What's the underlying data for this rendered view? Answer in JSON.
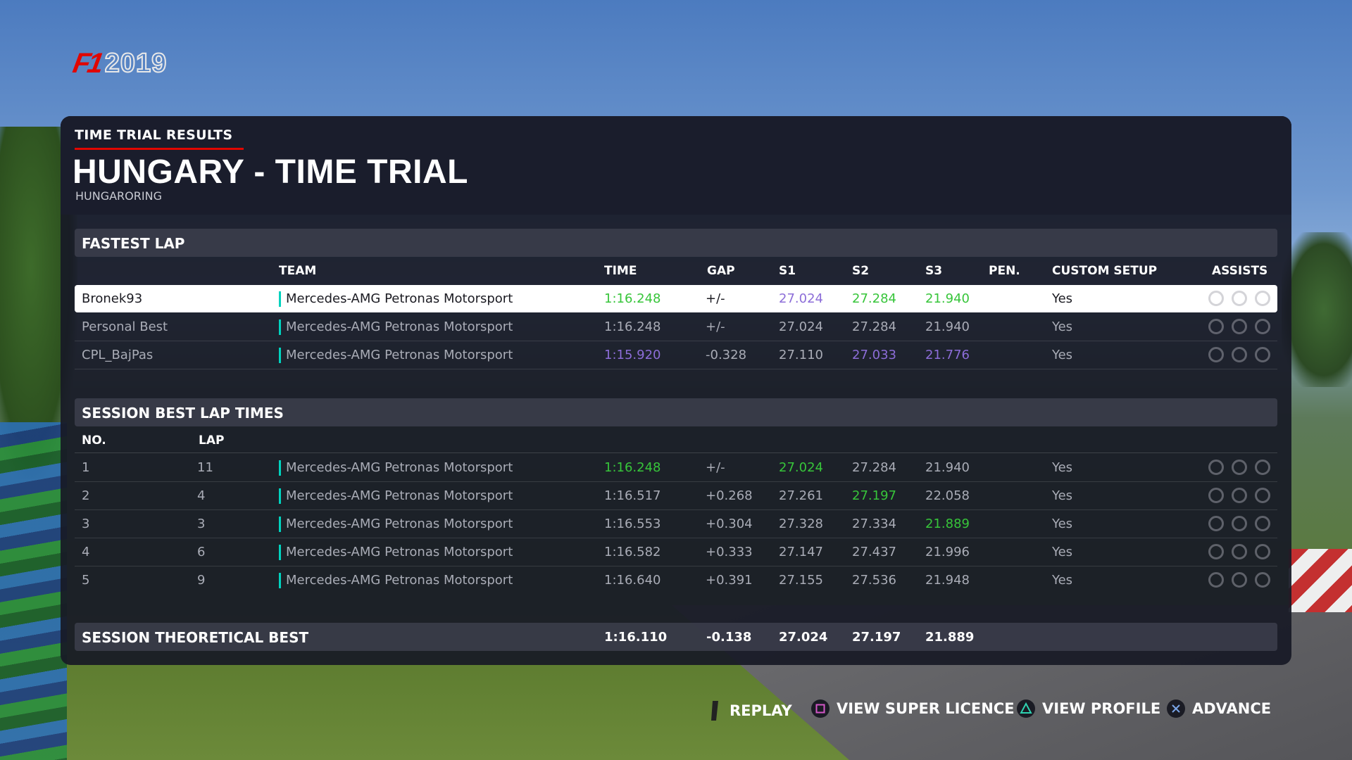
{
  "brand": {
    "logo_main": "F1",
    "logo_year": "2019"
  },
  "header": {
    "kicker": "TIME TRIAL RESULTS",
    "title": "HUNGARY - TIME TRIAL",
    "subtitle": "HUNGARORING"
  },
  "fastest_lap": {
    "section_title": "FASTEST LAP",
    "columns": {
      "team": "TEAM",
      "time": "TIME",
      "gap": "GAP",
      "s1": "S1",
      "s2": "S2",
      "s3": "S3",
      "pen": "PEN.",
      "custom_setup": "CUSTOM SETUP",
      "assists": "ASSISTS"
    },
    "rows": [
      {
        "name": "Bronek93",
        "team": "Mercedes-AMG Petronas Motorsport",
        "time": "1:16.248",
        "gap": "+/-",
        "s1": "27.024",
        "s2": "27.284",
        "s3": "21.940",
        "pen": "",
        "setup": "Yes"
      },
      {
        "name": "Personal Best",
        "team": "Mercedes-AMG Petronas Motorsport",
        "time": "1:16.248",
        "gap": "+/-",
        "s1": "27.024",
        "s2": "27.284",
        "s3": "21.940",
        "pen": "",
        "setup": "Yes"
      },
      {
        "name": "CPL_BajPas",
        "team": "Mercedes-AMG Petronas Motorsport",
        "time": "1:15.920",
        "gap": "-0.328",
        "s1": "27.110",
        "s2": "27.033",
        "s3": "21.776",
        "pen": "",
        "setup": "Yes"
      }
    ]
  },
  "session_best": {
    "section_title": "SESSION BEST LAP TIMES",
    "columns": {
      "no": "NO.",
      "lap": "LAP"
    },
    "rows": [
      {
        "no": "1",
        "lap": "11",
        "team": "Mercedes-AMG Petronas Motorsport",
        "time": "1:16.248",
        "gap": "+/-",
        "s1": "27.024",
        "s2": "27.284",
        "s3": "21.940",
        "setup": "Yes"
      },
      {
        "no": "2",
        "lap": "4",
        "team": "Mercedes-AMG Petronas Motorsport",
        "time": "1:16.517",
        "gap": "+0.268",
        "s1": "27.261",
        "s2": "27.197",
        "s3": "22.058",
        "setup": "Yes"
      },
      {
        "no": "3",
        "lap": "3",
        "team": "Mercedes-AMG Petronas Motorsport",
        "time": "1:16.553",
        "gap": "+0.304",
        "s1": "27.328",
        "s2": "27.334",
        "s3": "21.889",
        "setup": "Yes"
      },
      {
        "no": "4",
        "lap": "6",
        "team": "Mercedes-AMG Petronas Motorsport",
        "time": "1:16.582",
        "gap": "+0.333",
        "s1": "27.147",
        "s2": "27.437",
        "s3": "21.996",
        "setup": "Yes"
      },
      {
        "no": "5",
        "lap": "9",
        "team": "Mercedes-AMG Petronas Motorsport",
        "time": "1:16.640",
        "gap": "+0.391",
        "s1": "27.155",
        "s2": "27.536",
        "s3": "21.948",
        "setup": "Yes"
      }
    ]
  },
  "theoretical": {
    "label": "SESSION THEORETICAL BEST",
    "time": "1:16.110",
    "gap": "-0.138",
    "s1": "27.024",
    "s2": "27.197",
    "s3": "21.889"
  },
  "footer": {
    "replay": "REPLAY",
    "super_licence": "VIEW SUPER LICENCE",
    "profile": "VIEW PROFILE",
    "advance": "ADVANCE"
  },
  "colors": {
    "personal_best": "#37c53a",
    "overall_best": "#8c6dd8",
    "team_mercedes": "#00d2be",
    "accent": "#e10600"
  },
  "icons": [
    "steering-assist-icon",
    "gear-assist-icon",
    "braking-assist-icon",
    "triangle-button-icon",
    "square-button-icon",
    "cross-button-icon"
  ]
}
